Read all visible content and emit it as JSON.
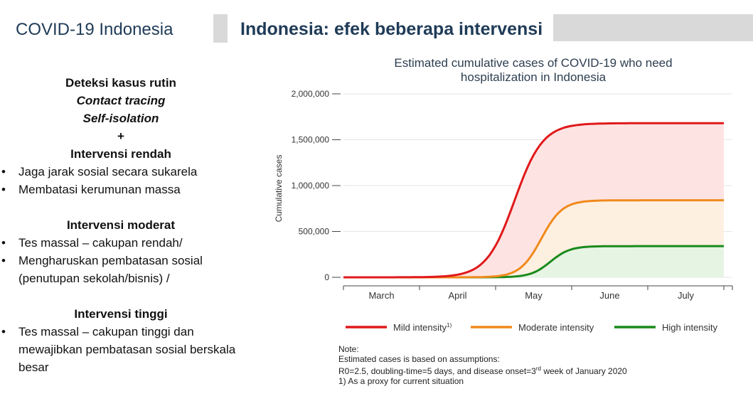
{
  "header": {
    "left_title": "COVID-19 Indonesia",
    "main_title": "Indonesia: efek beberapa intervensi"
  },
  "left_panel": {
    "line1": "Deteksi kasus rutin",
    "line2": "Contact tracing",
    "line3": "Self-isolation",
    "plus": "+",
    "low_title": "Intervensi rendah",
    "low_items": [
      "Jaga jarak sosial secara sukarela",
      "Membatasi kerumunan massa"
    ],
    "mod_title": "Intervensi moderat",
    "mod_items": [
      "Tes massal – cakupan rendah/",
      "Mengharuskan pembatasan sosial (penutupan sekolah/bisnis) /"
    ],
    "high_title": "Intervensi tinggi",
    "high_items": [
      "Tes massal – cakupan tinggi dan mewajibkan pembatasan sosial berskala besar"
    ]
  },
  "note": {
    "label": "Note:",
    "line1": "Estimated cases is based on assumptions:",
    "line2a": "R0=2.5, doubling-time=5 days, and disease onset=3",
    "line2sup": "rd",
    "line2b": " week of January 2020",
    "line3": "1) As a proxy for current situation"
  },
  "chart_data": {
    "type": "area",
    "title": "Estimated cumulative cases of COVID-19 who need hospitalization in Indonesia",
    "xlabel": "",
    "ylabel": "Cumulative cases",
    "categories": [
      "March",
      "April",
      "May",
      "June",
      "July"
    ],
    "ylim": [
      0,
      2000000
    ],
    "yticks": [
      0,
      500000,
      1000000,
      1500000,
      2000000
    ],
    "ytick_labels": [
      "0",
      "500,000",
      "1,000,000",
      "1,500,000",
      "2,000,000"
    ],
    "x_domain": [
      0,
      5
    ],
    "grid": true,
    "legend_position": "bottom",
    "series": [
      {
        "name": "Mild intensity",
        "legend_sup": "1)",
        "color": "#e0191b",
        "fill": "#fde4e2",
        "final": 1680000,
        "midpoint": 2.25,
        "rate": 5.4
      },
      {
        "name": "Moderate intensity",
        "legend_sup": "",
        "color": "#f08a1c",
        "fill": "#fef0e1",
        "final": 840000,
        "midpoint": 2.6,
        "rate": 7.2
      },
      {
        "name": "High intensity",
        "legend_sup": "",
        "color": "#1a8a1c",
        "fill": "#e6f4e4",
        "final": 340000,
        "midpoint": 2.72,
        "rate": 7.8
      }
    ]
  }
}
